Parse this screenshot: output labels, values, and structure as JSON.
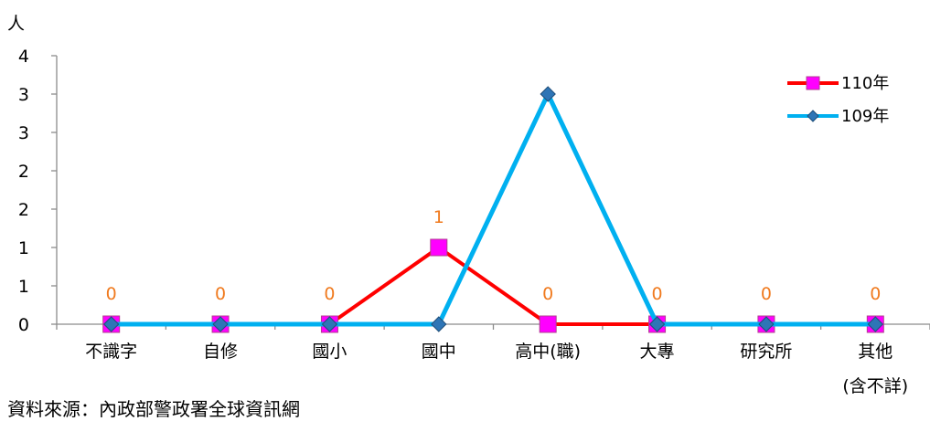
{
  "chart_data": {
    "type": "line",
    "ylabel": "人",
    "categories": [
      [
        "不識字"
      ],
      [
        "自修"
      ],
      [
        "國小"
      ],
      [
        "國中"
      ],
      [
        "高中(職)"
      ],
      [
        "大專"
      ],
      [
        "研究所"
      ],
      [
        "其他",
        "(含不詳)"
      ]
    ],
    "y_tick_labels": [
      "0",
      "1",
      "1",
      "2",
      "2",
      "3",
      "3",
      "4"
    ],
    "ylim": [
      0,
      3.5
    ],
    "y_tick_step": 0.5,
    "grid": false,
    "legend_position": "top-right",
    "series": [
      {
        "name": "110年",
        "color": "#ff0000",
        "marker": "square",
        "marker_color": "#ff00ff",
        "values": [
          0,
          0,
          0,
          1,
          0,
          0,
          0,
          0
        ],
        "data_labels": [
          "0",
          "0",
          "0",
          "1",
          "0",
          "0",
          "0",
          "0"
        ]
      },
      {
        "name": "109年",
        "color": "#00b0f0",
        "marker": "diamond",
        "marker_color": "#2e75b6",
        "values": [
          0,
          0,
          0,
          0,
          3,
          0,
          0,
          0
        ]
      }
    ],
    "data_label_color": "#f07a1e"
  },
  "source": "資料來源：內政部警政署全球資訊網"
}
